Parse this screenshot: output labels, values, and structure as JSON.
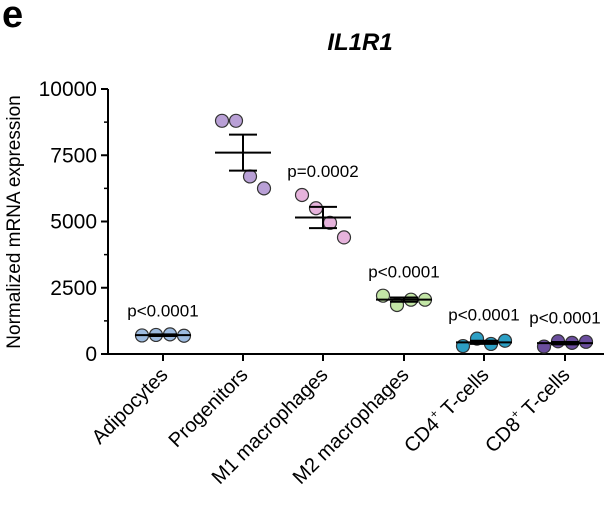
{
  "panel_letter": "e",
  "chart_data": {
    "type": "scatter",
    "title": "IL1R1",
    "ylabel": "Normalized mRNA expression",
    "xlabel": "",
    "ylim": [
      0,
      10000
    ],
    "yticks": [
      0,
      2500,
      5000,
      7500,
      10000
    ],
    "ytick_labels": [
      "0",
      "2500",
      "5000",
      "7500",
      "10000"
    ],
    "categories": [
      {
        "label": "Adipocytes",
        "sup": "",
        "label_rest": "",
        "color": "#9dbbe0",
        "points": [
          700,
          720,
          740,
          690
        ],
        "mean": 710,
        "sem": 30,
        "annotation": "p<0.0001"
      },
      {
        "label": "Progenitors",
        "sup": "",
        "label_rest": "",
        "color": "#b9a0d6",
        "points": [
          8800,
          8800,
          6700,
          6250
        ],
        "mean": 7600,
        "sem": 680,
        "annotation": ""
      },
      {
        "label": "M1 macrophages",
        "sup": "",
        "label_rest": "",
        "color": "#e6b3dc",
        "points": [
          6000,
          5500,
          4950,
          4400
        ],
        "mean": 5150,
        "sem": 400,
        "annotation": "p=0.0002"
      },
      {
        "label": "M2 macrophages",
        "sup": "",
        "label_rest": "",
        "color": "#c3e6a6",
        "points": [
          2200,
          1850,
          2050,
          2050
        ],
        "mean": 2050,
        "sem": 80,
        "annotation": "p<0.0001"
      },
      {
        "label": "CD4",
        "sup": "+",
        "label_rest": " T-cells",
        "color": "#2c9fc4",
        "points": [
          300,
          580,
          380,
          500
        ],
        "mean": 440,
        "sem": 60,
        "annotation": "p<0.0001"
      },
      {
        "label": "CD8",
        "sup": "+",
        "label_rest": " T-cells",
        "color": "#6b4e9e",
        "points": [
          280,
          480,
          420,
          460
        ],
        "mean": 410,
        "sem": 45,
        "annotation": "p<0.0001"
      }
    ]
  }
}
